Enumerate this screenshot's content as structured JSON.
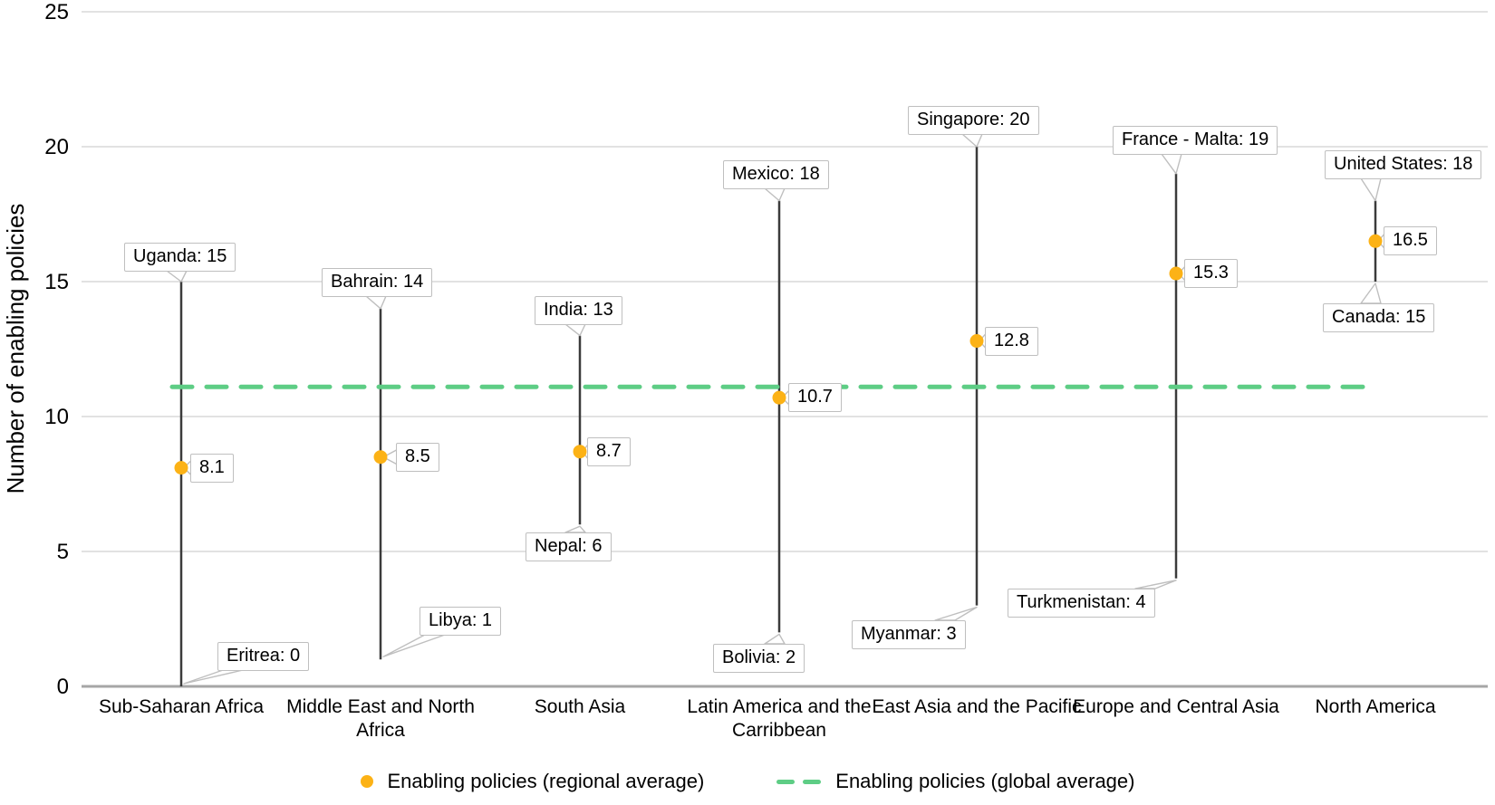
{
  "chart_data": {
    "type": "range-dot",
    "title": "",
    "ylabel": "Number of enabling policies",
    "xlabel": "",
    "ylim": [
      0,
      25
    ],
    "yticks": [
      0,
      5,
      10,
      15,
      20,
      25
    ],
    "grid": true,
    "global_average": 11.1,
    "categories": [
      "Sub-Saharan Africa",
      "Middle East and North Africa",
      "South Asia",
      "Latin America and the Carribbean",
      "East Asia and the Pacific",
      "Europe and Central Asia",
      "North America"
    ],
    "regions": [
      {
        "category": "Sub-Saharan Africa",
        "max_country": "Uganda",
        "max": 15,
        "min_country": "Eritrea",
        "min": 0,
        "regional_average": 8.1
      },
      {
        "category": "Middle East and North Africa",
        "max_country": "Bahrain",
        "max": 14,
        "min_country": "Libya",
        "min": 1,
        "regional_average": 8.5
      },
      {
        "category": "South Asia",
        "max_country": "India",
        "max": 13,
        "min_country": "Nepal",
        "min": 6,
        "regional_average": 8.7
      },
      {
        "category": "Latin America and the Carribbean",
        "max_country": "Mexico",
        "max": 18,
        "min_country": "Bolivia",
        "min": 2,
        "regional_average": 10.7
      },
      {
        "category": "East Asia and the Pacific",
        "max_country": "Singapore",
        "max": 20,
        "min_country": "Myanmar",
        "min": 3,
        "regional_average": 12.8
      },
      {
        "category": "Europe and Central Asia",
        "max_country": "France - Malta",
        "max": 19,
        "min_country": "Turkmenistan",
        "min": 4,
        "regional_average": 15.3
      },
      {
        "category": "North America",
        "max_country": "United States",
        "max": 18,
        "min_country": "Canada",
        "min": 15,
        "regional_average": 16.5
      }
    ],
    "legend": [
      {
        "label": "Enabling policies (regional average)",
        "marker": "dot"
      },
      {
        "label": "Enabling policies (global average)",
        "marker": "dashed-line"
      }
    ],
    "colors": {
      "dot": "#FCB216",
      "global_line": "#5ECD85",
      "stem": "#3B3B3B",
      "gridline": "#D9D9D9",
      "axis": "#A6A6A6",
      "callout_border": "#BFBFBF",
      "text": "#000000"
    }
  }
}
